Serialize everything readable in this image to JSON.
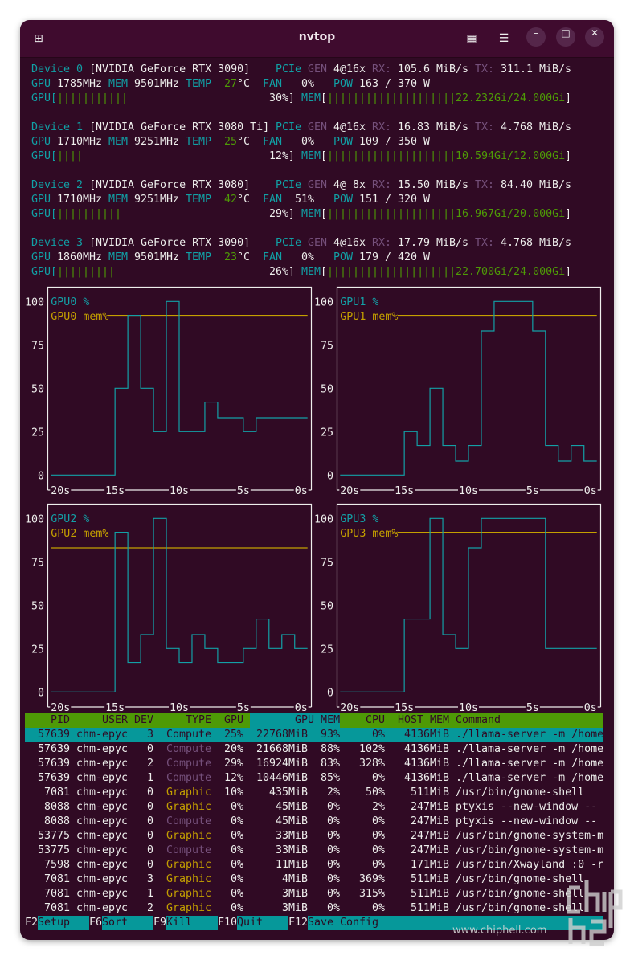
{
  "window": {
    "title": "nvtop"
  },
  "labels": {
    "device": "Device",
    "pcie": "PCIe",
    "gen": "GEN",
    "rx": "RX:",
    "tx": "TX:",
    "gpu": "GPU",
    "mem": "MEM",
    "temp": "TEMP",
    "deg": "°C",
    "fan": "FAN",
    "pow": "POW"
  },
  "colors": {
    "background": "#300a24",
    "teal": "#06989a",
    "green": "#4e9a06",
    "purple": "#75507b",
    "yellow": "#c4a000"
  },
  "devices": [
    {
      "index": "0",
      "name": "[NVIDIA GeForce RTX 3090]",
      "pcie_gen": "4@16x",
      "rx": "105.6 MiB/s",
      "tx": "311.1 MiB/s",
      "gpu_clock": "1785MHz",
      "mem_clock": "9501MHz",
      "temp": "27",
      "fan": "0%",
      "power": "163 / 370 W",
      "gpu_util": "30%",
      "mem_usage": "22.232Gi/24.000Gi"
    },
    {
      "index": "1",
      "name": "[NVIDIA GeForce RTX 3080 Ti]",
      "pcie_gen": "4@16x",
      "rx": "16.83 MiB/s",
      "tx": "4.768 MiB/s",
      "gpu_clock": "1710MHz",
      "mem_clock": "9251MHz",
      "temp": "25",
      "fan": "0%",
      "power": "109 / 350 W",
      "gpu_util": "12%",
      "mem_usage": "10.594Gi/12.000Gi"
    },
    {
      "index": "2",
      "name": "[NVIDIA GeForce RTX 3080]",
      "pcie_gen": "4@ 8x",
      "rx": "15.50 MiB/s",
      "tx": "84.40 MiB/s",
      "gpu_clock": "1710MHz",
      "mem_clock": "9251MHz",
      "temp": "42",
      "fan": "51%",
      "power": "151 / 320 W",
      "gpu_util": "29%",
      "mem_usage": "16.967Gi/20.000Gi"
    },
    {
      "index": "3",
      "name": "[NVIDIA GeForce RTX 3090]",
      "pcie_gen": "4@16x",
      "rx": "17.79 MiB/s",
      "tx": "4.768 MiB/s",
      "gpu_clock": "1860MHz",
      "mem_clock": "9501MHz",
      "temp": "23",
      "fan": "0%",
      "power": "179 / 420 W",
      "gpu_util": "26%",
      "mem_usage": "22.700Gi/24.000Gi"
    }
  ],
  "chart_data": [
    {
      "type": "line",
      "series": [
        {
          "name": "GPU0 %",
          "values": [
            0,
            0,
            0,
            0,
            0,
            50,
            92,
            50,
            25,
            100,
            25,
            25,
            42,
            33,
            33,
            25,
            33,
            33,
            33,
            33
          ]
        },
        {
          "name": "GPU0 mem%",
          "values": [
            92
          ]
        }
      ],
      "yticks": [
        "100",
        "75",
        "50",
        "25",
        "0"
      ],
      "xticks": [
        "20s",
        "15s",
        "10s",
        "5s",
        "0s"
      ],
      "ylim": [
        0,
        100
      ]
    },
    {
      "type": "line",
      "series": [
        {
          "name": "GPU1 %",
          "values": [
            0,
            0,
            0,
            0,
            0,
            25,
            17,
            50,
            17,
            8,
            17,
            83,
            100,
            100,
            100,
            83,
            17,
            8,
            17,
            8
          ]
        },
        {
          "name": "GPU1 mem%",
          "values": [
            92
          ]
        }
      ],
      "yticks": [
        "100",
        "75",
        "50",
        "25",
        "0"
      ],
      "xticks": [
        "20s",
        "15s",
        "10s",
        "5s",
        "0s"
      ],
      "ylim": [
        0,
        100
      ]
    },
    {
      "type": "line",
      "series": [
        {
          "name": "GPU2 %",
          "values": [
            0,
            0,
            0,
            0,
            0,
            92,
            17,
            33,
            100,
            25,
            17,
            33,
            25,
            17,
            17,
            25,
            42,
            25,
            33,
            25
          ]
        },
        {
          "name": "GPU2 mem%",
          "values": [
            83
          ]
        }
      ],
      "yticks": [
        "100",
        "75",
        "50",
        "25",
        "0"
      ],
      "xticks": [
        "20s",
        "15s",
        "10s",
        "5s",
        "0s"
      ],
      "ylim": [
        0,
        100
      ]
    },
    {
      "type": "line",
      "series": [
        {
          "name": "GPU3 %",
          "values": [
            0,
            0,
            0,
            0,
            0,
            42,
            42,
            100,
            33,
            25,
            83,
            100,
            100,
            100,
            100,
            100,
            25,
            25,
            25,
            25
          ]
        },
        {
          "name": "GPU3 mem%",
          "values": [
            92
          ]
        }
      ],
      "yticks": [
        "100",
        "75",
        "50",
        "25",
        "0"
      ],
      "xticks": [
        "20s",
        "15s",
        "10s",
        "5s",
        "0s"
      ],
      "ylim": [
        0,
        100
      ]
    }
  ],
  "process_table": {
    "headers": {
      "pid": "PID",
      "user": "USER",
      "dev": "DEV",
      "type": "TYPE",
      "gpu": "GPU",
      "gpu_mem": "GPU MEM",
      "cpu": "CPU",
      "host_mem": "HOST MEM",
      "command": "Command"
    },
    "rows": [
      {
        "pid": "57639",
        "user": "chm-epyc",
        "dev": "3",
        "type": "Compute",
        "gpu": "25%",
        "gpu_mem": "22768MiB",
        "gpu_mem_pct": "93%",
        "cpu": "0%",
        "host_mem": "4136MiB",
        "command": "./llama-server -m /home",
        "selected": true
      },
      {
        "pid": "57639",
        "user": "chm-epyc",
        "dev": "0",
        "type": "Compute",
        "gpu": "20%",
        "gpu_mem": "21668MiB",
        "gpu_mem_pct": "88%",
        "cpu": "102%",
        "host_mem": "4136MiB",
        "command": "./llama-server -m /home"
      },
      {
        "pid": "57639",
        "user": "chm-epyc",
        "dev": "2",
        "type": "Compute",
        "gpu": "29%",
        "gpu_mem": "16924MiB",
        "gpu_mem_pct": "83%",
        "cpu": "328%",
        "host_mem": "4136MiB",
        "command": "./llama-server -m /home"
      },
      {
        "pid": "57639",
        "user": "chm-epyc",
        "dev": "1",
        "type": "Compute",
        "gpu": "12%",
        "gpu_mem": "10446MiB",
        "gpu_mem_pct": "85%",
        "cpu": "0%",
        "host_mem": "4136MiB",
        "command": "./llama-server -m /home"
      },
      {
        "pid": "7081",
        "user": "chm-epyc",
        "dev": "0",
        "type": "Graphic",
        "gpu": "10%",
        "gpu_mem": "435MiB",
        "gpu_mem_pct": "2%",
        "cpu": "50%",
        "host_mem": "511MiB",
        "command": "/usr/bin/gnome-shell"
      },
      {
        "pid": "8088",
        "user": "chm-epyc",
        "dev": "0",
        "type": "Graphic",
        "gpu": "0%",
        "gpu_mem": "45MiB",
        "gpu_mem_pct": "0%",
        "cpu": "2%",
        "host_mem": "247MiB",
        "command": "ptyxis --new-window --"
      },
      {
        "pid": "8088",
        "user": "chm-epyc",
        "dev": "0",
        "type": "Compute",
        "gpu": "0%",
        "gpu_mem": "45MiB",
        "gpu_mem_pct": "0%",
        "cpu": "0%",
        "host_mem": "247MiB",
        "command": "ptyxis --new-window --"
      },
      {
        "pid": "53775",
        "user": "chm-epyc",
        "dev": "0",
        "type": "Graphic",
        "gpu": "0%",
        "gpu_mem": "33MiB",
        "gpu_mem_pct": "0%",
        "cpu": "0%",
        "host_mem": "247MiB",
        "command": "/usr/bin/gnome-system-m"
      },
      {
        "pid": "53775",
        "user": "chm-epyc",
        "dev": "0",
        "type": "Compute",
        "gpu": "0%",
        "gpu_mem": "33MiB",
        "gpu_mem_pct": "0%",
        "cpu": "0%",
        "host_mem": "247MiB",
        "command": "/usr/bin/gnome-system-m"
      },
      {
        "pid": "7598",
        "user": "chm-epyc",
        "dev": "0",
        "type": "Graphic",
        "gpu": "0%",
        "gpu_mem": "11MiB",
        "gpu_mem_pct": "0%",
        "cpu": "0%",
        "host_mem": "171MiB",
        "command": "/usr/bin/Xwayland :0 -r"
      },
      {
        "pid": "7081",
        "user": "chm-epyc",
        "dev": "3",
        "type": "Graphic",
        "gpu": "0%",
        "gpu_mem": "4MiB",
        "gpu_mem_pct": "0%",
        "cpu": "369%",
        "host_mem": "511MiB",
        "command": "/usr/bin/gnome-shell"
      },
      {
        "pid": "7081",
        "user": "chm-epyc",
        "dev": "1",
        "type": "Graphic",
        "gpu": "0%",
        "gpu_mem": "3MiB",
        "gpu_mem_pct": "0%",
        "cpu": "315%",
        "host_mem": "511MiB",
        "command": "/usr/bin/gnome-shell"
      },
      {
        "pid": "7081",
        "user": "chm-epyc",
        "dev": "2",
        "type": "Graphic",
        "gpu": "0%",
        "gpu_mem": "3MiB",
        "gpu_mem_pct": "0%",
        "cpu": "0%",
        "host_mem": "511MiB",
        "command": "/usr/bin/gnome-shell"
      }
    ]
  },
  "footer": [
    {
      "key": "F2",
      "label": "Setup"
    },
    {
      "key": "F6",
      "label": "Sort"
    },
    {
      "key": "F9",
      "label": "Kill"
    },
    {
      "key": "F10",
      "label": "Quit"
    },
    {
      "key": "F12",
      "label": "Save Config"
    }
  ],
  "watermark": {
    "url": "www.chiphell.com",
    "logo": "chip hell"
  }
}
